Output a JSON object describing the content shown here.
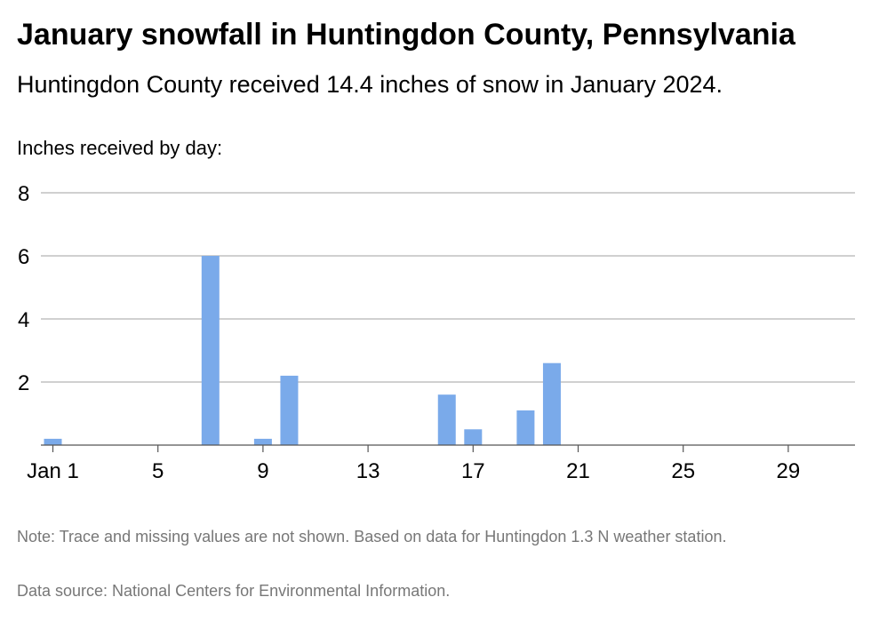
{
  "title": "January snowfall in Huntingdon County, Pennsylvania",
  "subtitle": "Huntingdon County received 14.4 inches of snow in January 2024.",
  "note": "Note: Trace and missing values are not shown. Based on data for Huntingdon 1.3 N weather station.",
  "source": "Data source: National Centers for Environmental Information.",
  "colors": {
    "bar": "#7aaaea",
    "grid": "#b3b3b3",
    "axis": "#555555"
  },
  "chart_data": {
    "type": "bar",
    "ylabel": "Inches received by day:",
    "xlabel": "",
    "ylim": [
      0,
      8
    ],
    "yticks": [
      2,
      4,
      6,
      8
    ],
    "x_range": [
      1,
      31
    ],
    "xticks": [
      {
        "day": 1,
        "label": "Jan 1"
      },
      {
        "day": 5,
        "label": "5"
      },
      {
        "day": 9,
        "label": "9"
      },
      {
        "day": 13,
        "label": "13"
      },
      {
        "day": 17,
        "label": "17"
      },
      {
        "day": 21,
        "label": "21"
      },
      {
        "day": 25,
        "label": "25"
      },
      {
        "day": 29,
        "label": "29"
      }
    ],
    "grid": true,
    "points": [
      {
        "day": 1,
        "value": 0.2
      },
      {
        "day": 7,
        "value": 6.0
      },
      {
        "day": 9,
        "value": 0.2
      },
      {
        "day": 10,
        "value": 2.2
      },
      {
        "day": 16,
        "value": 1.6
      },
      {
        "day": 17,
        "value": 0.5
      },
      {
        "day": 19,
        "value": 1.1
      },
      {
        "day": 20,
        "value": 2.6
      }
    ]
  }
}
